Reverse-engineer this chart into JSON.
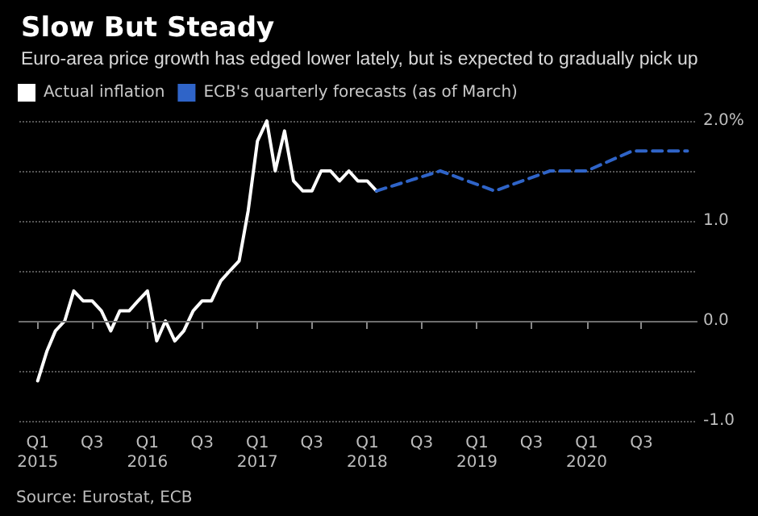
{
  "chart_data": {
    "type": "line",
    "title": "Slow But Steady",
    "subtitle": "Euro-area price growth has edged lower lately, but is expected to gradually pick up",
    "annotations": [
      "Source: Eurostat, ECB"
    ],
    "legend": "top left",
    "grid": "y",
    "marker": "none",
    "xlim": [
      "2014-11",
      "2021-01"
    ],
    "xticks": [
      {
        "value": "2015-01",
        "label": "Q1\n2015"
      },
      {
        "value": "2015-07",
        "label": "Q3"
      },
      {
        "value": "2016-01",
        "label": "Q1\n2016"
      },
      {
        "value": "2016-07",
        "label": "Q3"
      },
      {
        "value": "2017-01",
        "label": "Q1\n2017"
      },
      {
        "value": "2017-07",
        "label": "Q3"
      },
      {
        "value": "2018-01",
        "label": "Q1\n2018"
      },
      {
        "value": "2018-07",
        "label": "Q3"
      },
      {
        "value": "2019-01",
        "label": "Q1\n2019"
      },
      {
        "value": "2019-07",
        "label": "Q3"
      },
      {
        "value": "2020-01",
        "label": "Q1\n2020"
      },
      {
        "value": "2020-07",
        "label": "Q3"
      }
    ],
    "ylim": [
      -1,
      2
    ],
    "yticks": [
      {
        "value": -1,
        "label": "-1.0"
      },
      {
        "value": -0.5,
        "label": null
      },
      {
        "value": 0,
        "label": "0.0"
      },
      {
        "value": 0.5,
        "label": null
      },
      {
        "value": 1,
        "label": "1.0"
      },
      {
        "value": 1.5,
        "label": null
      },
      {
        "value": 2,
        "label": "2.0%"
      }
    ],
    "ref_lines": [
      {
        "axis": "y",
        "value": 0,
        "color": "#6e6e6e",
        "line_style": "solid"
      }
    ],
    "series": [
      {
        "name": "Actual inflation",
        "color": "#ffffff",
        "line_style": "solid",
        "x": [
          "2015-01",
          "2015-02",
          "2015-03",
          "2015-04",
          "2015-05",
          "2015-06",
          "2015-07",
          "2015-08",
          "2015-09",
          "2015-10",
          "2015-11",
          "2015-12",
          "2016-01",
          "2016-02",
          "2016-03",
          "2016-04",
          "2016-05",
          "2016-06",
          "2016-07",
          "2016-08",
          "2016-09",
          "2016-10",
          "2016-11",
          "2016-12",
          "2017-01",
          "2017-02",
          "2017-03",
          "2017-04",
          "2017-05",
          "2017-06",
          "2017-07",
          "2017-08",
          "2017-09",
          "2017-10",
          "2017-11",
          "2017-12",
          "2018-01",
          "2018-02"
        ],
        "values": [
          -0.6,
          -0.3,
          -0.1,
          0.0,
          0.3,
          0.2,
          0.2,
          0.1,
          -0.1,
          0.1,
          0.1,
          0.2,
          0.3,
          -0.2,
          0.0,
          -0.2,
          -0.1,
          0.1,
          0.2,
          0.2,
          0.4,
          0.5,
          0.6,
          1.1,
          1.8,
          2.0,
          1.5,
          1.9,
          1.4,
          1.3,
          1.3,
          1.5,
          1.5,
          1.4,
          1.5,
          1.4,
          1.4,
          1.3
        ]
      },
      {
        "name": "ECB's quarterly forecasts (as of March)",
        "color": "#2f64c8",
        "line_style": "dashed",
        "x": [
          "2018-02",
          "2018-09",
          "2019-03",
          "2019-09",
          "2020-01",
          "2020-06",
          "2020-12"
        ],
        "values": [
          1.3,
          1.5,
          1.3,
          1.5,
          1.5,
          1.7,
          1.7
        ]
      }
    ]
  }
}
